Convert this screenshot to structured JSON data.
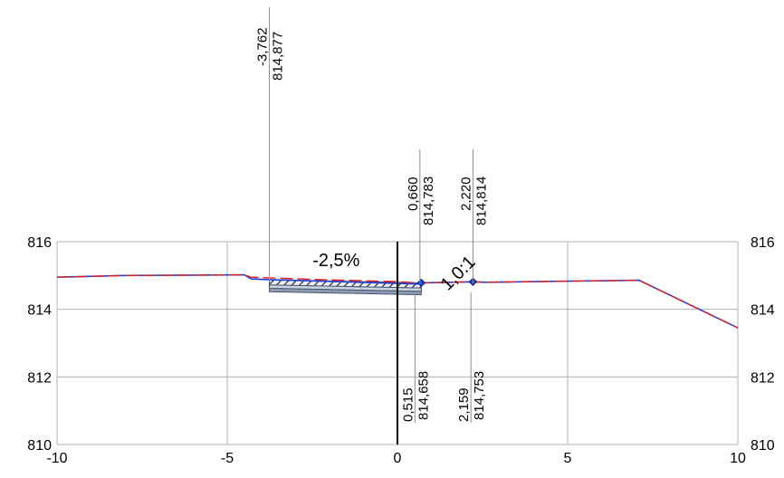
{
  "chart_data": {
    "type": "line",
    "title": "",
    "xlabel": "",
    "ylabel": "",
    "xlim": [
      -10,
      10
    ],
    "ylim": [
      810,
      816
    ],
    "x_ticks": [
      "-10",
      "-5",
      "0",
      "5",
      "10"
    ],
    "y_ticks": [
      "810",
      "812",
      "814",
      "816"
    ],
    "grid": true,
    "series": [
      {
        "color": "#1f3fd6",
        "style": "solid",
        "x": [
          -10,
          -8,
          -4.5,
          -4.3,
          -3.762,
          0.6,
          0.7,
          2.22,
          2.6,
          7.1,
          10
        ],
        "y": [
          814.95,
          815.0,
          815.02,
          814.9,
          814.877,
          814.75,
          814.783,
          814.814,
          814.8,
          814.86,
          813.45
        ]
      },
      {
        "color": "#e02020",
        "style": "dashed",
        "x": [
          -10,
          -8,
          -4.5,
          -4.3,
          -3.762,
          -2.0,
          0.0,
          0.6,
          0.7,
          2.22,
          2.6,
          7.1,
          10
        ],
        "y": [
          814.95,
          815.0,
          815.02,
          814.95,
          814.93,
          814.87,
          814.82,
          814.78,
          814.78,
          814.814,
          814.8,
          814.86,
          813.45
        ]
      }
    ],
    "pavement": {
      "x_left": -3.762,
      "x_right": 0.7,
      "layers": [
        {
          "top_left": 814.877,
          "top_right": 814.78,
          "bottom_left": 814.72,
          "bottom_right": 814.63,
          "color": "#eef0f6",
          "hatch": "#1a1a1a"
        },
        {
          "top_left": 814.72,
          "top_right": 814.63,
          "bottom_left": 814.62,
          "bottom_right": 814.53,
          "color": "#c9d2e3"
        },
        {
          "top_left": 814.62,
          "top_right": 814.53,
          "bottom_left": 814.52,
          "bottom_right": 814.43,
          "color": "#8e9cb5"
        }
      ]
    },
    "axis_line_x": 0,
    "markers": [
      {
        "x": 0.7,
        "y": 814.783,
        "color": "#1f3fd6"
      },
      {
        "x": 2.22,
        "y": 814.814,
        "color": "#1f3fd6"
      }
    ],
    "annotations": {
      "slope_text": "-2,5%",
      "slope_at": {
        "x": -1.8,
        "y": 815.28
      },
      "ratio_text": "1,0:1",
      "ratio_at": {
        "x": 1.9,
        "y": 814.95
      }
    },
    "top_labels": [
      {
        "x": -3.762,
        "offset": "-3,762",
        "elevation": "814,877"
      },
      {
        "x": 0.66,
        "offset": "0,660",
        "elevation": "814,783"
      },
      {
        "x": 2.22,
        "offset": "2,220",
        "elevation": "814,814"
      }
    ],
    "bottom_labels": [
      {
        "x": 0.515,
        "offset": "0,515",
        "elevation": "814,658"
      },
      {
        "x": 2.159,
        "offset": "2,159",
        "elevation": "814,753"
      }
    ]
  }
}
